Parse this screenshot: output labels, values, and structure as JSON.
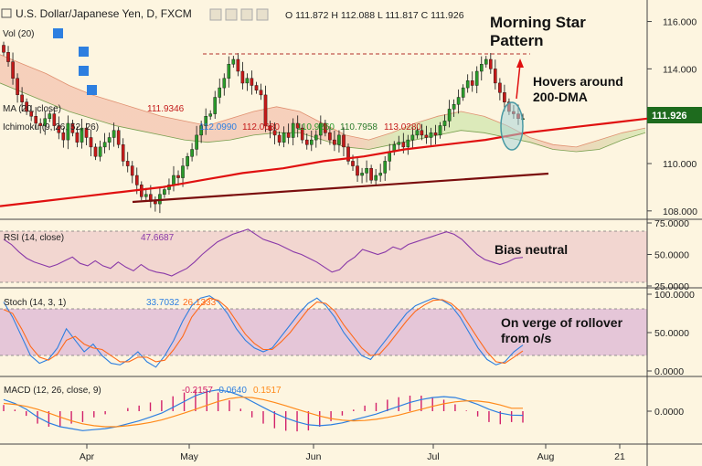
{
  "header": {
    "symbol": "U.S. Dollar/Japanese Yen, D, FXCM",
    "ohlc": "O 111.872 H 112.088 L 111.817 C 111.926"
  },
  "indicators": {
    "vol": "Vol (20)",
    "ma2": "MA (20, close)",
    "ma2_value": "111.9346",
    "ichimoku": "Ichimoku (9, 26, 52, 26)",
    "ichimoku_values": [
      "112.0990",
      "112.0680",
      "110.9260",
      "110.7958",
      "113.0280"
    ]
  },
  "annotations": {
    "pattern_line1": "Morning Star",
    "pattern_line2": "Pattern",
    "dma_line1": "Hovers around",
    "dma_line2": "200-DMA",
    "rsi_note": "Bias neutral",
    "stoch_line1": "On verge of rollover",
    "stoch_line2": "from o/s"
  },
  "colors": {
    "background": "#fdf5e0",
    "bull": "#2a9a2a",
    "bear": "#c41a1a",
    "ma200": "#e01010",
    "trendline": "#7a0d0d",
    "price_tag": "#1e6b1e",
    "cloud_bull": "#d6e8b3",
    "cloud_bear": "#f5c9b5",
    "rsi_band": "#f2d6d0",
    "stoch_band": "#e5c6d8",
    "rsi_line": "#8a3aa8",
    "stoch_k": "#2d7fe0",
    "stoch_d": "#ff6a1a",
    "macd_line": "#2d7fe0",
    "macd_signal": "#ff8a1a",
    "macd_hist": "#d2206a"
  },
  "chart_data": [
    {
      "type": "candlestick",
      "title": "U.S. Dollar/Japanese Yen, D, FXCM",
      "x_ticks": [
        "Apr",
        "May",
        "Jun",
        "Jul",
        "Aug",
        "21"
      ],
      "y_ticks": [
        108.0,
        110.0,
        112.0,
        114.0,
        116.0
      ],
      "ylim": [
        107.8,
        116.6
      ],
      "last_price": "111.926",
      "series": [
        {
          "name": "Close",
          "values": [
            114.7,
            114.3,
            113.6,
            112.9,
            112.6,
            112.2,
            112.0,
            111.7,
            111.6,
            111.9,
            112.1,
            111.6,
            111.3,
            111.0,
            111.7,
            111.3,
            110.9,
            111.5,
            111.1,
            110.7,
            110.3,
            110.7,
            110.9,
            111.1,
            111.4,
            110.8,
            110.1,
            109.9,
            109.5,
            109.1,
            108.6,
            108.7,
            108.4,
            108.3,
            108.7,
            108.9,
            109.1,
            109.5,
            109.4,
            109.9,
            110.3,
            110.6,
            111.2,
            111.6,
            112.0,
            112.1,
            112.8,
            113.2,
            113.6,
            114.2,
            114.4,
            113.9,
            113.4,
            113.6,
            113.3,
            113.1,
            112.9,
            111.6,
            111.4,
            111.2,
            110.9,
            111.3,
            111.1,
            111.7,
            111.5,
            111.0,
            110.8,
            111.0,
            111.2,
            111.7,
            111.3,
            111.0,
            110.8,
            111.2,
            110.7,
            110.1,
            109.9,
            109.5,
            109.6,
            109.8,
            109.3,
            109.5,
            109.6,
            110.1,
            110.5,
            110.8,
            110.9,
            110.7,
            111.0,
            111.2,
            111.4,
            111.2,
            111.1,
            111.3,
            111.2,
            111.6,
            111.8,
            112.3,
            112.5,
            112.8,
            113.2,
            113.5,
            113.3,
            113.9,
            114.2,
            114.4,
            114.0,
            113.4,
            113.0,
            112.6,
            112.2,
            112.1,
            111.9,
            111.9
          ]
        },
        {
          "name": "200-DMA",
          "values": [
            108.2,
            108.4,
            108.6,
            108.8,
            109.0,
            109.3,
            109.6,
            109.8,
            110.1,
            110.3,
            110.6,
            110.8,
            111.0,
            111.3,
            111.5,
            111.7,
            111.9
          ]
        }
      ],
      "cloud": {
        "upper": [
          114.6,
          114.2,
          113.8,
          113.3,
          112.9,
          112.6,
          112.3,
          112.0,
          111.8,
          111.6,
          111.9,
          112.2,
          112.4,
          112.2,
          111.7,
          111.2,
          111.0,
          111.3,
          111.7,
          112.0,
          112.2,
          112.0,
          111.6,
          111.1,
          110.8,
          110.7,
          111.0,
          111.3,
          111.5
        ],
        "lower": [
          113.4,
          113.0,
          112.6,
          112.2,
          111.9,
          111.6,
          111.4,
          111.2,
          111.0,
          110.9,
          111.0,
          111.2,
          111.3,
          111.3,
          111.0,
          110.7,
          110.6,
          110.8,
          111.0,
          111.2,
          111.4,
          111.3,
          111.1,
          110.9,
          110.6,
          110.5,
          110.6,
          111.0,
          111.3
        ]
      }
    },
    {
      "type": "line",
      "title": "RSI (14, close)",
      "current_value": "47.6687",
      "y_ticks": [
        25.0,
        50.0,
        75.0
      ],
      "y_tick_labels": [
        "25.0000",
        "50.0000",
        "75.0000"
      ],
      "ylim": [
        25,
        75
      ],
      "band": [
        30,
        70
      ],
      "series": [
        {
          "name": "RSI",
          "values": [
            62,
            58,
            52,
            47,
            44,
            42,
            40,
            42,
            45,
            48,
            43,
            41,
            45,
            41,
            39,
            44,
            40,
            37,
            42,
            38,
            36,
            35,
            33,
            36,
            39,
            44,
            50,
            55,
            60,
            63,
            66,
            68,
            70,
            66,
            62,
            60,
            58,
            55,
            52,
            50,
            47,
            44,
            40,
            36,
            38,
            44,
            48,
            54,
            52,
            50,
            52,
            56,
            54,
            58,
            60,
            62,
            64,
            66,
            68,
            66,
            62,
            56,
            50,
            46,
            44,
            42,
            44,
            47,
            47.67
          ]
        }
      ]
    },
    {
      "type": "line",
      "title": "Stoch (14, 3, 1)",
      "current_values": [
        "33.7032",
        "26.1333"
      ],
      "y_ticks": [
        0,
        50,
        100
      ],
      "y_tick_labels": [
        "0.0000",
        "50.0000",
        "100.0000"
      ],
      "ylim": [
        0,
        100
      ],
      "band": [
        20,
        80
      ],
      "series": [
        {
          "name": "%K",
          "values": [
            90,
            70,
            45,
            20,
            10,
            15,
            30,
            55,
            40,
            25,
            35,
            20,
            10,
            8,
            15,
            25,
            12,
            5,
            20,
            40,
            65,
            85,
            95,
            98,
            90,
            75,
            55,
            40,
            30,
            25,
            30,
            45,
            60,
            75,
            88,
            95,
            85,
            70,
            50,
            35,
            20,
            15,
            30,
            45,
            60,
            75,
            85,
            90,
            95,
            92,
            85,
            70,
            50,
            30,
            15,
            8,
            12,
            25,
            33.7
          ]
        },
        {
          "name": "%D",
          "values": [
            80,
            75,
            55,
            32,
            18,
            14,
            22,
            40,
            45,
            35,
            30,
            28,
            20,
            12,
            12,
            18,
            18,
            12,
            14,
            28,
            45,
            70,
            85,
            95,
            92,
            82,
            65,
            48,
            36,
            28,
            28,
            38,
            50,
            65,
            80,
            90,
            88,
            78,
            60,
            45,
            30,
            20,
            22,
            35,
            50,
            65,
            78,
            86,
            92,
            93,
            88,
            78,
            60,
            42,
            25,
            12,
            10,
            18,
            26.1
          ]
        }
      ]
    },
    {
      "type": "line",
      "title": "MACD (12, 26, close, 9)",
      "current_values": [
        "-0.2157",
        "-0.0640",
        "0.1517"
      ],
      "y_ticks": [
        0
      ],
      "y_tick_labels": [
        "0.0000"
      ],
      "ylim": [
        -1.6,
        1.6
      ],
      "series": [
        {
          "name": "MACD",
          "values": [
            0.6,
            0.4,
            0.1,
            -0.3,
            -0.6,
            -0.8,
            -0.9,
            -1.0,
            -0.95,
            -0.9,
            -0.8,
            -0.65,
            -0.5,
            -0.3,
            -0.1,
            0.2,
            0.5,
            0.8,
            1.0,
            1.1,
            1.0,
            0.8,
            0.5,
            0.2,
            -0.1,
            -0.35,
            -0.55,
            -0.7,
            -0.75,
            -0.7,
            -0.6,
            -0.45,
            -0.3,
            -0.15,
            0.05,
            0.25,
            0.45,
            0.6,
            0.7,
            0.75,
            0.7,
            0.55,
            0.35,
            0.1,
            -0.1,
            -0.2,
            -0.216
          ]
        },
        {
          "name": "Signal",
          "values": [
            0.4,
            0.35,
            0.25,
            0.1,
            -0.1,
            -0.3,
            -0.5,
            -0.65,
            -0.75,
            -0.8,
            -0.8,
            -0.75,
            -0.68,
            -0.58,
            -0.45,
            -0.28,
            -0.1,
            0.1,
            0.3,
            0.5,
            0.65,
            0.72,
            0.7,
            0.6,
            0.45,
            0.28,
            0.1,
            -0.08,
            -0.25,
            -0.38,
            -0.46,
            -0.5,
            -0.48,
            -0.42,
            -0.32,
            -0.2,
            -0.05,
            0.1,
            0.25,
            0.38,
            0.48,
            0.53,
            0.52,
            0.45,
            0.32,
            0.15,
            0.152
          ]
        }
      ]
    }
  ]
}
